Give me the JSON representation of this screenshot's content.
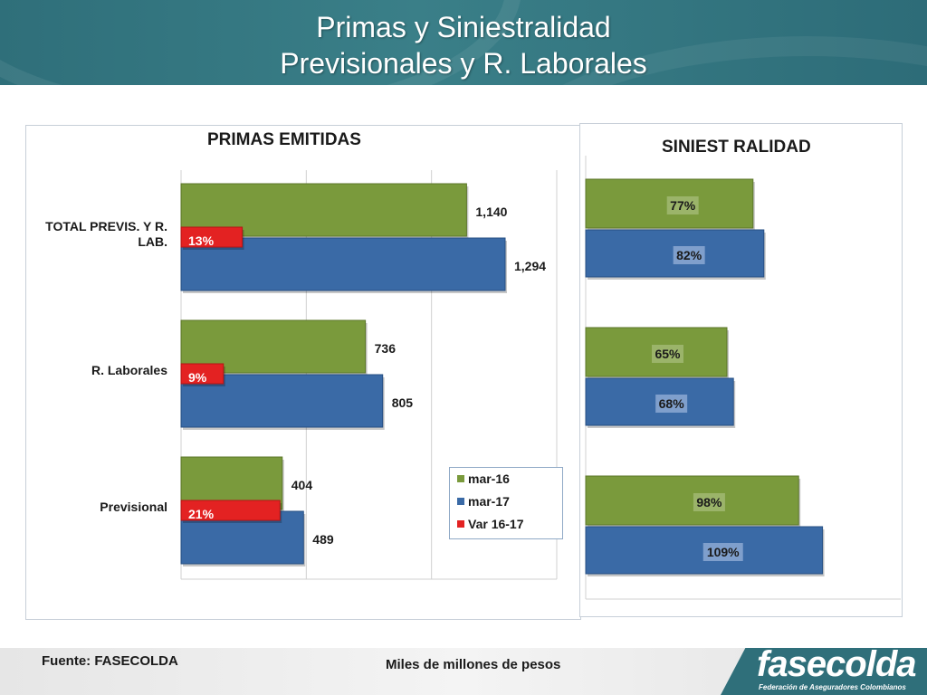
{
  "title": {
    "line1": "Primas  y Siniestralidad",
    "line2": "Previsionales  y R. Laborales"
  },
  "colors": {
    "mar16": "#7a9a3c",
    "mar17": "#3a6aa6",
    "var": "#e32222",
    "header": "#2f6f7a"
  },
  "chart_data": [
    {
      "type": "bar",
      "orientation": "horizontal",
      "title": "PRIMAS EMITIDAS",
      "categories": [
        "TOTAL  PREVIS. Y R. LAB.",
        "R. Laborales",
        "Previsional"
      ],
      "category_lines": [
        [
          "TOTAL  PREVIS. Y R.",
          "LAB."
        ],
        [
          "R. Laborales"
        ],
        [
          "Previsional"
        ]
      ],
      "series": [
        {
          "name": "mar-16",
          "values": [
            1140,
            736,
            404
          ],
          "labels": [
            "1,140",
            "736",
            "404"
          ]
        },
        {
          "name": "mar-17",
          "values": [
            1294,
            805,
            489
          ],
          "labels": [
            "1,294",
            "805",
            "489"
          ]
        },
        {
          "name": "Var 16-17",
          "values": [
            13,
            9,
            21
          ],
          "labels": [
            "13%",
            "9%",
            "21%"
          ]
        }
      ],
      "xlim": [
        0,
        1500
      ],
      "gridlines": [
        0,
        500,
        1000,
        1500
      ],
      "legend": "bottom-right"
    },
    {
      "type": "bar",
      "orientation": "horizontal",
      "title": "SINIEST RALIDAD",
      "categories": [
        "TOTAL  PREVIS. Y R. LAB.",
        "R. Laborales",
        "Previsional"
      ],
      "series": [
        {
          "name": "mar-16",
          "values": [
            77,
            65,
            98
          ],
          "labels": [
            "77%",
            "65%",
            "98%"
          ]
        },
        {
          "name": "mar-17",
          "values": [
            82,
            68,
            109
          ],
          "labels": [
            "82%",
            "68%",
            "109%"
          ]
        }
      ],
      "xlim": [
        0,
        150
      ]
    }
  ],
  "legend": {
    "items": [
      {
        "label": "mar-16",
        "color": "#7a9a3c"
      },
      {
        "label": "mar-17",
        "color": "#3a6aa6"
      },
      {
        "label": "Var 16-17",
        "color": "#e32222"
      }
    ]
  },
  "footer": {
    "source": "Fuente: FASECOLDA",
    "units": "Miles de millones de pesos",
    "logo": "fasecolda",
    "logo_sub": "Federación de Aseguradores Colombianos"
  }
}
